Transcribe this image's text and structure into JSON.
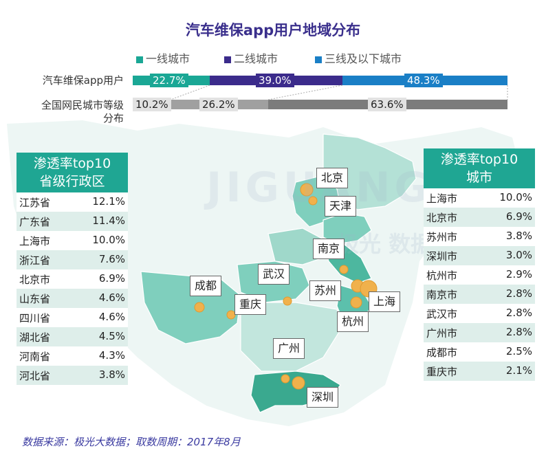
{
  "title": "汽车维保app用户地域分布",
  "colors": {
    "tier1": "#1aa795",
    "tier2": "#3b2b8b",
    "tier3": "#1a7fc6",
    "gray1": "#c0c0c0",
    "gray2": "#a0a0a0",
    "gray3": "#7c7c7c",
    "table_header": "#1fa693",
    "map_fill": "#5cc0ac",
    "bubble": "#f0b14c"
  },
  "chart_data": [
    {
      "type": "bar",
      "title": "汽车维保app用户地域分布",
      "legend": [
        "一线城市",
        "二线城市",
        "三线及以下城市"
      ],
      "legend_placement": "top",
      "categories": [
        "汽车维保app用户",
        "全国网民城市等级分布"
      ],
      "series": [
        {
          "name": "一线城市",
          "values": [
            22.7,
            10.2
          ]
        },
        {
          "name": "二线城市",
          "values": [
            39.0,
            26.2
          ]
        },
        {
          "name": "三线及以下城市",
          "values": [
            48.3,
            63.6
          ]
        }
      ],
      "value_labels": {
        "row1": [
          "22.7%",
          "39.0%",
          "48.3%"
        ],
        "row2": [
          "10.2%",
          "26.2%",
          "63.6%"
        ]
      },
      "row2_label_lines": [
        "全国网民城市等级",
        "分布"
      ]
    },
    {
      "type": "table",
      "title_lines": [
        "渗透率top10",
        "省级行政区"
      ],
      "rows": [
        {
          "name": "江苏省",
          "value": "12.1%"
        },
        {
          "name": "广东省",
          "value": "11.4%"
        },
        {
          "name": "上海市",
          "value": "10.0%"
        },
        {
          "name": "浙江省",
          "value": "7.6%"
        },
        {
          "name": "北京市",
          "value": "6.9%"
        },
        {
          "name": "山东省",
          "value": "4.6%"
        },
        {
          "name": "四川省",
          "value": "4.6%"
        },
        {
          "name": "湖北省",
          "value": "4.5%"
        },
        {
          "name": "河南省",
          "value": "4.3%"
        },
        {
          "name": "河北省",
          "value": "3.8%"
        }
      ]
    },
    {
      "type": "table",
      "title_lines": [
        "渗透率top10",
        "城市"
      ],
      "rows": [
        {
          "name": "上海市",
          "value": "10.0%"
        },
        {
          "name": "北京市",
          "value": "6.9%"
        },
        {
          "name": "苏州市",
          "value": "3.8%"
        },
        {
          "name": "深圳市",
          "value": "3.0%"
        },
        {
          "name": "杭州市",
          "value": "2.9%"
        },
        {
          "name": "南京市",
          "value": "2.8%"
        },
        {
          "name": "武汉市",
          "value": "2.8%"
        },
        {
          "name": "广州市",
          "value": "2.8%"
        },
        {
          "name": "成都市",
          "value": "2.5%"
        },
        {
          "name": "重庆市",
          "value": "2.1%"
        }
      ]
    },
    {
      "type": "scatter",
      "map_city_labels": [
        "北京",
        "天津",
        "南京",
        "武汉",
        "苏州",
        "上海",
        "杭州",
        "成都",
        "重庆",
        "广州",
        "深圳"
      ]
    }
  ],
  "watermark": {
    "text1": "JIGUANG",
    "text2": "极光 数据服务"
  },
  "source": "数据来源：极光大数据；取数周期：2017年8月"
}
